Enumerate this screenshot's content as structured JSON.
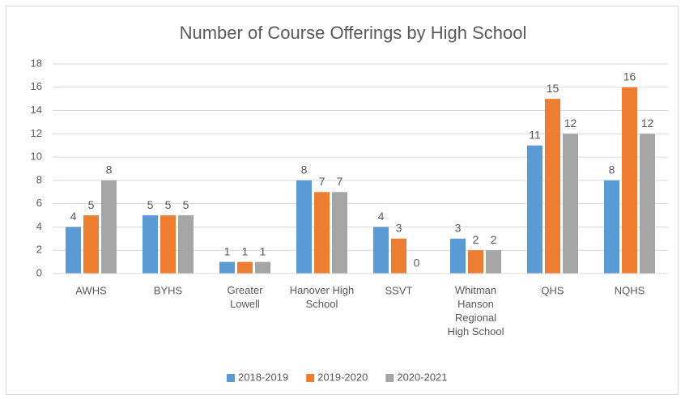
{
  "chart_data": {
    "type": "bar",
    "title": "Number of Course Offerings by High School",
    "categories": [
      "AWHS",
      "BYHS",
      "Greater Lowell",
      "Hanover High School",
      "SSVT",
      "Whitman Hanson Regional High School",
      "QHS",
      "NQHS"
    ],
    "series": [
      {
        "name": "2018-2019",
        "color": "#5b9bd5",
        "values": [
          4,
          5,
          1,
          8,
          4,
          3,
          11,
          8
        ]
      },
      {
        "name": "2019-2020",
        "color": "#ed7d31",
        "values": [
          5,
          5,
          1,
          7,
          3,
          2,
          15,
          16
        ]
      },
      {
        "name": "2020-2021",
        "color": "#a5a5a5",
        "values": [
          8,
          5,
          1,
          7,
          0,
          2,
          12,
          12
        ]
      }
    ],
    "ylim": [
      0,
      18
    ],
    "yticks": [
      0,
      2,
      4,
      6,
      8,
      10,
      12,
      14,
      16,
      18
    ],
    "grid": true,
    "legend": "bottom"
  }
}
